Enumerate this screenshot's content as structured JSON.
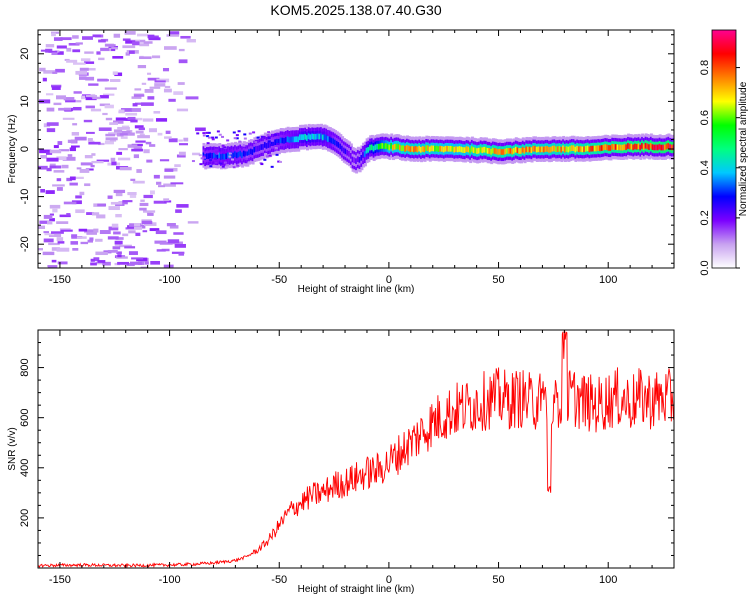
{
  "page_title": "KOM5.2025.138.07.40.G30",
  "chart_data": [
    {
      "type": "heatmap",
      "title": "KOM5.2025.138.07.40.G30",
      "xlabel": "Height of straight line (km)",
      "ylabel": "Frequency (Hz)",
      "xlim": [
        -160,
        130
      ],
      "ylim": [
        -25,
        25
      ],
      "x_ticks": [
        -150,
        -100,
        -50,
        0,
        50,
        100
      ],
      "y_ticks": [
        -20,
        -10,
        0,
        10,
        20
      ],
      "colorbar": {
        "label": "Normalized spectral amplitude",
        "range": [
          0,
          0.95
        ],
        "ticks": [
          0.0,
          0.2,
          0.4,
          0.6,
          0.8
        ],
        "colormap": [
          "#ffffff",
          "#c8a2f0",
          "#7b00ff",
          "#0000ff",
          "#00c8ff",
          "#00ff80",
          "#00ff00",
          "#ffff00",
          "#ff8000",
          "#ff0000",
          "#ff0090"
        ]
      },
      "ridge": {
        "description_points_x": [
          -85,
          -75,
          -65,
          -58,
          -52,
          -45,
          -38,
          -30,
          -25,
          -20,
          -16,
          -13,
          -10,
          -5,
          0,
          10,
          30,
          50,
          70,
          90,
          110,
          130
        ],
        "frequency_hz": [
          -1.5,
          -1.5,
          -1.0,
          0.5,
          1.5,
          2.0,
          2.5,
          2.5,
          1.5,
          -0.5,
          -2.5,
          -2.0,
          0.0,
          0.5,
          0.5,
          0.0,
          0.0,
          -0.5,
          0.0,
          0.0,
          0.5,
          0.5
        ],
        "amplitude": [
          0.3,
          0.35,
          0.3,
          0.25,
          0.3,
          0.35,
          0.45,
          0.4,
          0.3,
          0.25,
          0.2,
          0.25,
          0.45,
          0.55,
          0.7,
          0.75,
          0.7,
          0.8,
          0.75,
          0.8,
          0.85,
          0.9
        ]
      },
      "noise_region_x": [
        -160,
        -85
      ]
    },
    {
      "type": "line",
      "xlabel": "Height of straight line (km)",
      "ylabel": "SNR (v/v)",
      "xlim": [
        -160,
        130
      ],
      "ylim": [
        0,
        950
      ],
      "x_ticks": [
        -150,
        -100,
        -50,
        0,
        50,
        100
      ],
      "y_ticks": [
        200,
        400,
        600,
        800
      ],
      "color": "#ff0000",
      "series": [
        {
          "x": [
            -160,
            -140,
            -120,
            -100,
            -90,
            -80,
            -70,
            -65,
            -60,
            -55,
            -50,
            -45,
            -40,
            -35,
            -30,
            -25,
            -20,
            -15,
            -10,
            -5,
            0,
            5,
            10,
            15,
            20,
            25,
            30,
            35,
            40,
            45,
            50,
            55,
            60,
            65,
            70,
            72,
            75,
            78,
            80,
            85,
            90,
            95,
            100,
            105,
            110,
            115,
            120,
            125,
            130
          ],
          "values": [
            10,
            12,
            10,
            12,
            15,
            20,
            30,
            45,
            70,
            110,
            170,
            230,
            260,
            290,
            300,
            330,
            340,
            360,
            380,
            390,
            420,
            460,
            500,
            540,
            580,
            610,
            630,
            640,
            660,
            670,
            680,
            670,
            680,
            660,
            670,
            640,
            620,
            700,
            700,
            680,
            660,
            650,
            670,
            680,
            660,
            680,
            670,
            680,
            670
          ]
        }
      ],
      "annotations": {
        "spike_peak": {
          "x": 80,
          "y": 950
        },
        "spike_dip": {
          "x": 73,
          "y": 300
        }
      }
    }
  ]
}
